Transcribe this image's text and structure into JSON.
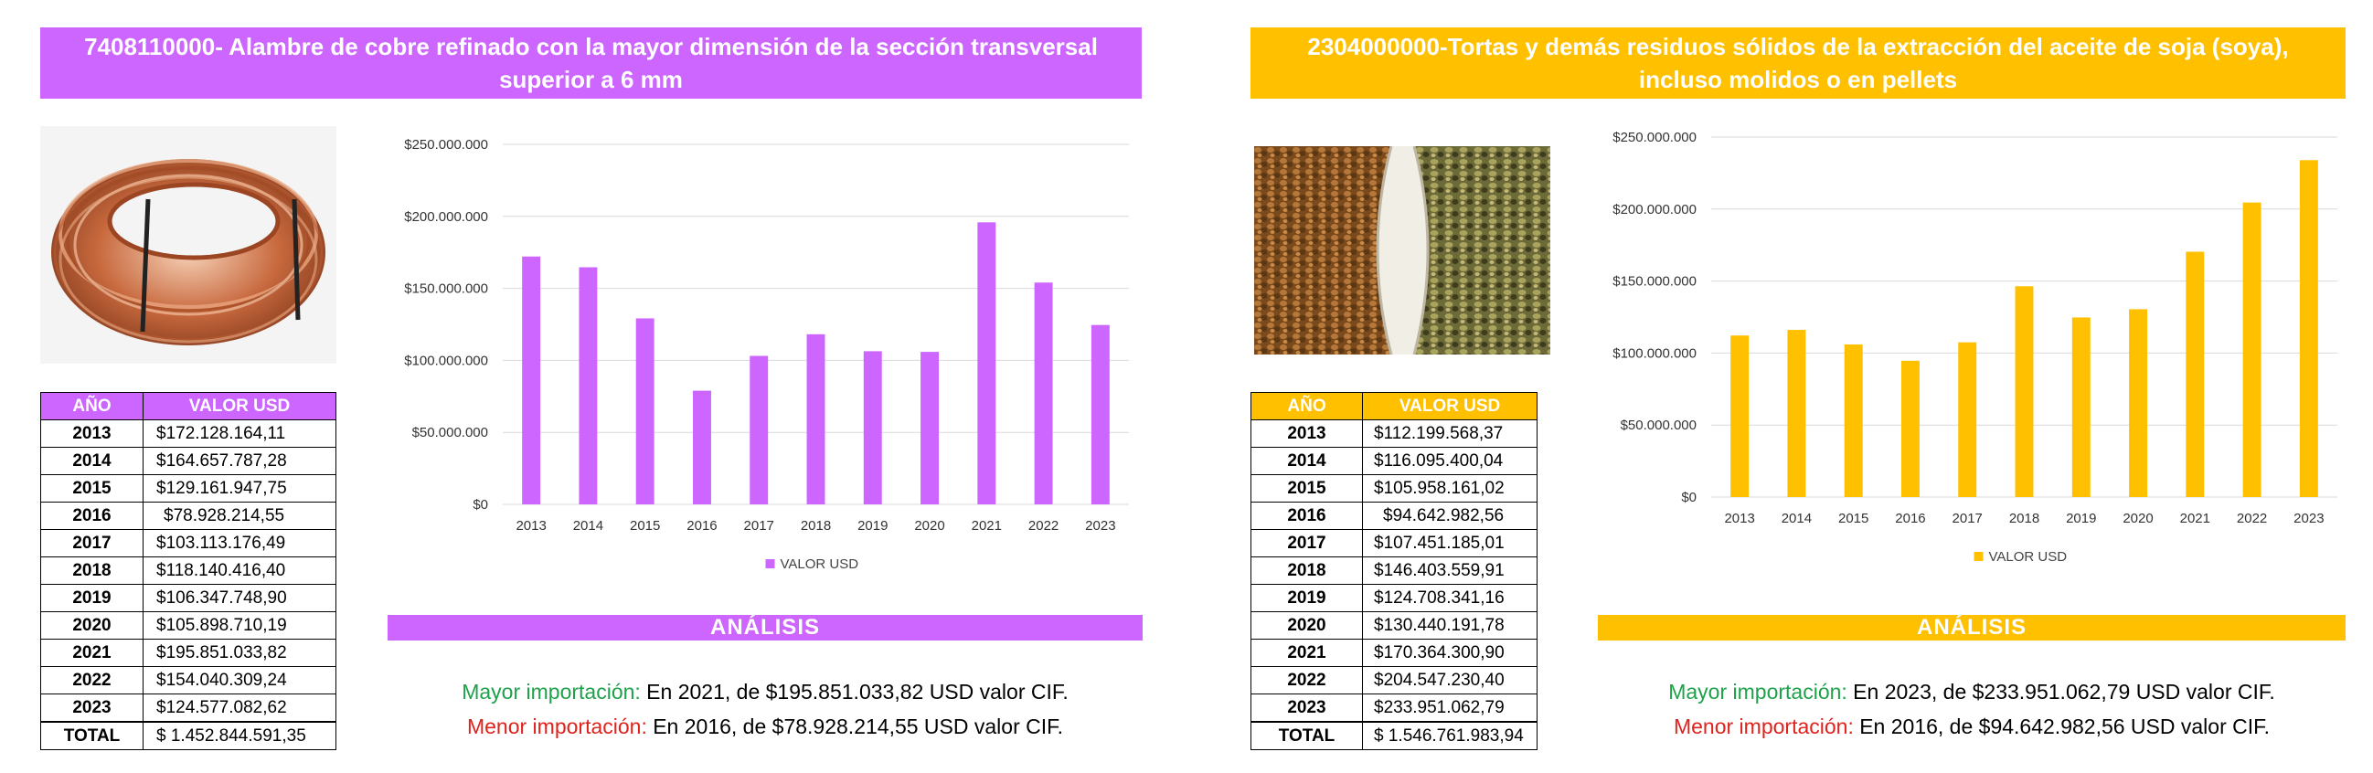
{
  "panels": [
    {
      "title": "7408110000- Alambre de cobre refinado con la mayor dimensión de la sección transversal superior a 6 mm",
      "accent": "#cc66ff",
      "table": {
        "headers": [
          "AÑO",
          "VALOR USD"
        ],
        "rows": [
          {
            "year": "2013",
            "value": "$172.128.164,11"
          },
          {
            "year": "2014",
            "value": "$164.657.787,28"
          },
          {
            "year": "2015",
            "value": "$129.161.947,75"
          },
          {
            "year": "2016",
            "value": "$78.928.214,55"
          },
          {
            "year": "2017",
            "value": "$103.113.176,49"
          },
          {
            "year": "2018",
            "value": "$118.140.416,40"
          },
          {
            "year": "2019",
            "value": "$106.347.748,90"
          },
          {
            "year": "2020",
            "value": "$105.898.710,19"
          },
          {
            "year": "2021",
            "value": "$195.851.033,82"
          },
          {
            "year": "2022",
            "value": "$154.040.309,24"
          },
          {
            "year": "2023",
            "value": "$124.577.082,62"
          }
        ],
        "total_label": "TOTAL",
        "total_value": "$ 1.452.844.591,35"
      },
      "analysis": {
        "heading": "ANÁLISIS",
        "max_label": "Mayor importación:",
        "max_text": " En 2021, de $195.851.033,82 USD valor CIF.",
        "min_label": "Menor importación:",
        "min_text": " En 2016, de $78.928.214,55 USD valor CIF."
      }
    },
    {
      "title": "2304000000-Tortas y demás residuos sólidos de la extracción del aceite de soja (soya), incluso molidos o en pellets",
      "accent": "#ffc000",
      "table": {
        "headers": [
          "AÑO",
          "VALOR USD"
        ],
        "rows": [
          {
            "year": "2013",
            "value": "$112.199.568,37"
          },
          {
            "year": "2014",
            "value": "$116.095.400,04"
          },
          {
            "year": "2015",
            "value": "$105.958.161,02"
          },
          {
            "year": "2016",
            "value": "$94.642.982,56"
          },
          {
            "year": "2017",
            "value": "$107.451.185,01"
          },
          {
            "year": "2018",
            "value": "$146.403.559,91"
          },
          {
            "year": "2019",
            "value": "$124.708.341,16"
          },
          {
            "year": "2020",
            "value": "$130.440.191,78"
          },
          {
            "year": "2021",
            "value": "$170.364.300,90"
          },
          {
            "year": "2022",
            "value": "$204.547.230,40"
          },
          {
            "year": "2023",
            "value": "$233.951.062,79"
          }
        ],
        "total_label": "TOTAL",
        "total_value": "$ 1.546.761.983,94"
      },
      "analysis": {
        "heading": "ANÁLISIS",
        "max_label": "Mayor importación:",
        "max_text": " En 2023, de $233.951.062,79 USD valor CIF.",
        "min_label": "Menor importación:",
        "min_text": " En 2016, de $94.642.982,56 USD valor CIF."
      }
    }
  ],
  "chart_data": [
    {
      "type": "bar",
      "title": "",
      "xlabel": "",
      "ylabel": "",
      "categories": [
        "2013",
        "2014",
        "2015",
        "2016",
        "2017",
        "2018",
        "2019",
        "2020",
        "2021",
        "2022",
        "2023"
      ],
      "series": [
        {
          "name": "VALOR USD",
          "color": "#cc66ff",
          "values": [
            172128164.11,
            164657787.28,
            129161947.75,
            78928214.55,
            103113176.49,
            118140416.4,
            106347748.9,
            105898710.19,
            195851033.82,
            154040309.24,
            124577082.62
          ]
        }
      ],
      "ylim": [
        0,
        250000000
      ],
      "yticks": [
        0,
        50000000,
        100000000,
        150000000,
        200000000,
        250000000
      ],
      "ytick_labels": [
        "$0",
        "$50.000.000",
        "$100.000.000",
        "$150.000.000",
        "$200.000.000",
        "$250.000.000"
      ],
      "grid": true,
      "legend": "bottom"
    },
    {
      "type": "bar",
      "title": "",
      "xlabel": "",
      "ylabel": "",
      "categories": [
        "2013",
        "2014",
        "2015",
        "2016",
        "2017",
        "2018",
        "2019",
        "2020",
        "2021",
        "2022",
        "2023"
      ],
      "series": [
        {
          "name": "VALOR USD",
          "color": "#ffc000",
          "values": [
            112199568.37,
            116095400.04,
            105958161.02,
            94642982.56,
            107451185.01,
            146403559.91,
            124708341.16,
            130440191.78,
            170364300.9,
            204547230.4,
            233951062.79
          ]
        }
      ],
      "ylim": [
        0,
        250000000
      ],
      "yticks": [
        0,
        50000000,
        100000000,
        150000000,
        200000000,
        250000000
      ],
      "ytick_labels": [
        "$0",
        "$50.000.000",
        "$100.000.000",
        "$150.000.000",
        "$200.000.000",
        "$250.000.000"
      ],
      "grid": true,
      "legend": "bottom"
    }
  ],
  "images": {
    "left_photo": "copper-wire-coil-photo",
    "right_photo": "soybean-pellets-photo"
  }
}
